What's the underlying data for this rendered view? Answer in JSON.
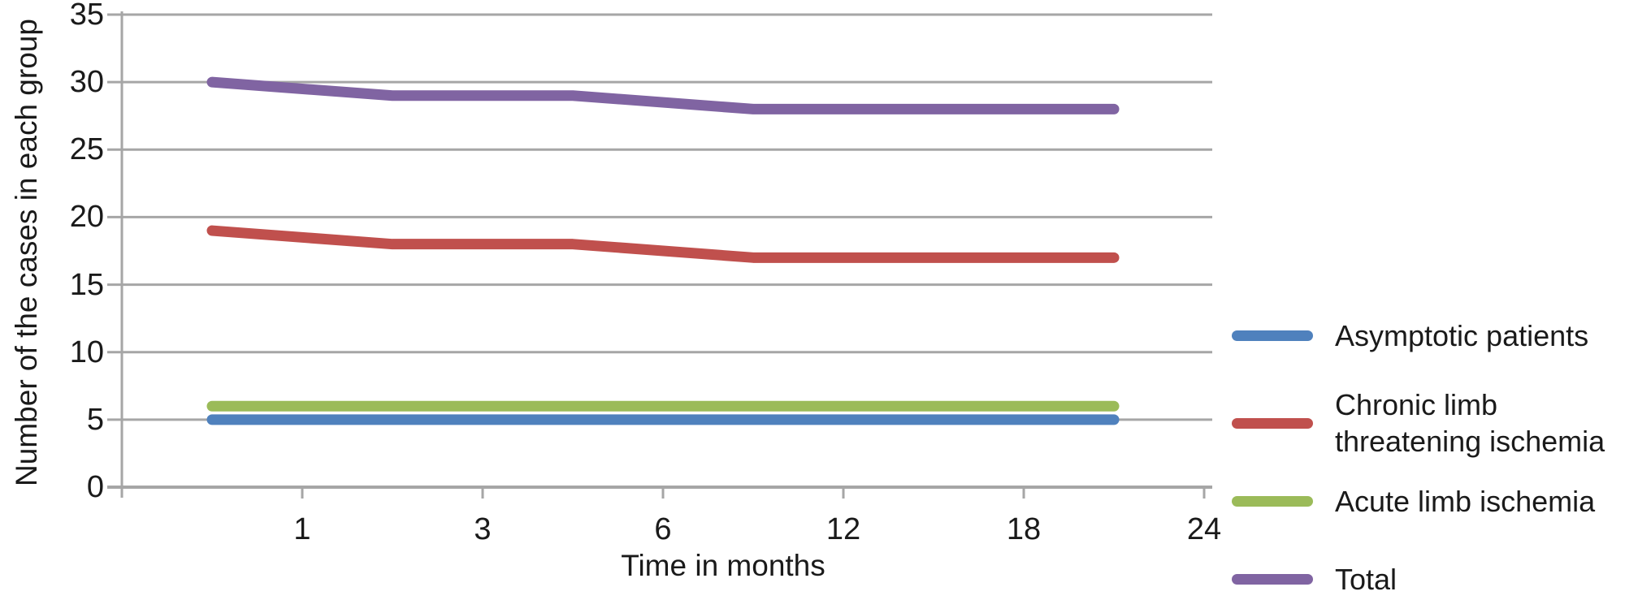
{
  "chart_data": {
    "type": "line",
    "title": "",
    "xlabel": "Time in months",
    "ylabel": "Number of the cases in each group",
    "x_tick_labels": [
      "1",
      "3",
      "6",
      "12",
      "18",
      "24"
    ],
    "y_tick_labels": [
      0,
      5,
      10,
      15,
      20,
      25,
      30,
      35
    ],
    "ylim": [
      0,
      35
    ],
    "xlim_months": [
      0,
      24
    ],
    "grid": "horizontal",
    "legend_position": "right",
    "gridline_color": "#A6A6A6",
    "axis_color": "#A6A6A6",
    "text_color": "#1A1A1A",
    "background_color": "#FFFFFF",
    "series": [
      {
        "name": "Asymptotic patients",
        "color": "#4F81BD",
        "values": [
          5,
          5,
          5,
          5,
          5,
          5
        ]
      },
      {
        "name": "Chronic limb threatening ischemia",
        "color": "#C0504D",
        "values": [
          19,
          18,
          18,
          17,
          17,
          17
        ]
      },
      {
        "name": "Acute limb ischemia",
        "color": "#9BBB59",
        "values": [
          6,
          6,
          6,
          6,
          6,
          6
        ]
      },
      {
        "name": "Total",
        "color": "#8064A2",
        "values": [
          30,
          29,
          29,
          28,
          28,
          28
        ]
      }
    ]
  }
}
